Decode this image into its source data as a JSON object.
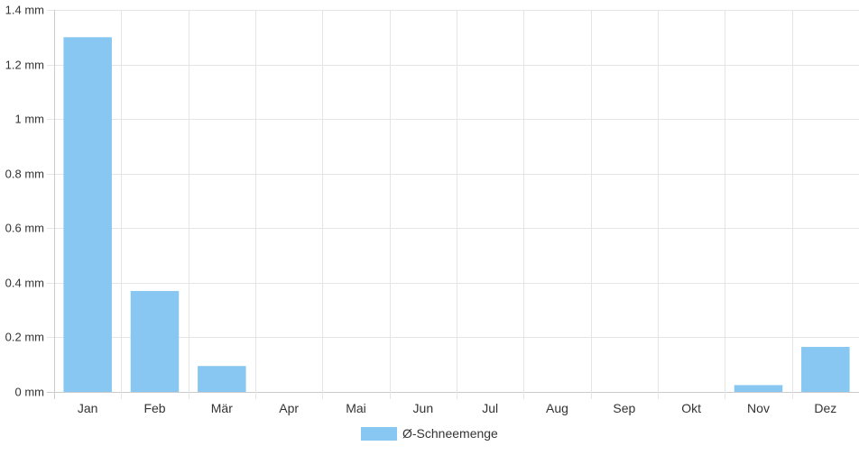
{
  "chart_data": {
    "type": "bar",
    "categories": [
      "Jan",
      "Feb",
      "Mär",
      "Apr",
      "Mai",
      "Jun",
      "Jul",
      "Aug",
      "Sep",
      "Okt",
      "Nov",
      "Dez"
    ],
    "series": [
      {
        "name": "Ø-Schneemenge",
        "values": [
          1.3,
          0.37,
          0.095,
          0,
          0,
          0,
          0,
          0,
          0,
          0,
          0.025,
          0.165
        ],
        "color": "#88c7f2"
      }
    ],
    "unit": "mm",
    "y_ticks": [
      "0 mm",
      "0.2 mm",
      "0.4 mm",
      "0.6 mm",
      "0.8 mm",
      "1 mm",
      "1.2 mm",
      "1.4 mm"
    ],
    "ylim": [
      0,
      1.4
    ],
    "grid": true,
    "legend_position": "bottom",
    "grid_color": "#e5e5e5",
    "axis_color": "#cccccc"
  }
}
